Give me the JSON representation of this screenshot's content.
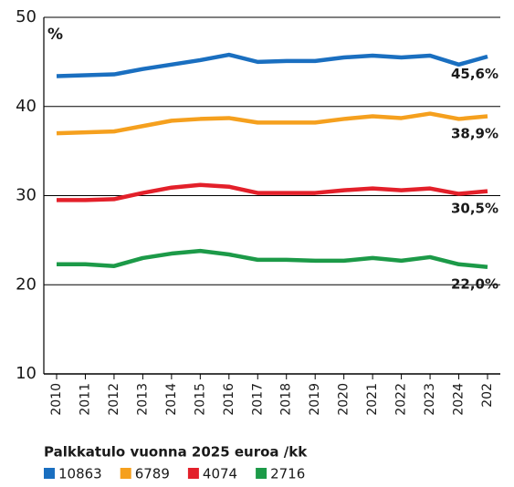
{
  "chart_data": {
    "type": "line",
    "y_label": "%",
    "legend_title": "Palkkatulo vuonna 2025 euroa /kk",
    "categories": [
      "2010",
      "2011",
      "2012",
      "2013",
      "2014",
      "2015",
      "2016",
      "2017",
      "2018",
      "2019",
      "2020",
      "2021",
      "2022",
      "2023",
      "2024",
      "202"
    ],
    "series": [
      {
        "name": "10863",
        "color": "#1a6fc0",
        "values": [
          43.4,
          43.5,
          43.6,
          44.2,
          44.7,
          45.2,
          45.8,
          45.0,
          45.1,
          45.1,
          45.5,
          45.7,
          45.5,
          45.7,
          44.7,
          45.6
        ],
        "value_labels": [
          null,
          null,
          null,
          null,
          null,
          null,
          null,
          null,
          null,
          null,
          null,
          null,
          null,
          null,
          null,
          "45,6%"
        ]
      },
      {
        "name": "6789",
        "color": "#f5a01e",
        "values": [
          37.0,
          37.1,
          37.2,
          37.8,
          38.4,
          38.6,
          38.7,
          38.2,
          38.2,
          38.2,
          38.6,
          38.9,
          38.7,
          39.2,
          38.6,
          38.9
        ],
        "value_labels": [
          null,
          null,
          null,
          null,
          null,
          null,
          null,
          null,
          null,
          null,
          null,
          null,
          null,
          null,
          null,
          "38,9%"
        ]
      },
      {
        "name": "4074",
        "color": "#e3202a",
        "values": [
          29.5,
          29.5,
          29.6,
          30.3,
          30.9,
          31.2,
          31.0,
          30.3,
          30.3,
          30.3,
          30.6,
          30.8,
          30.6,
          30.8,
          30.2,
          30.5
        ],
        "value_labels": [
          null,
          null,
          null,
          null,
          null,
          null,
          null,
          null,
          null,
          null,
          null,
          null,
          null,
          null,
          null,
          "30,5%"
        ]
      },
      {
        "name": "2716",
        "color": "#1c9a48",
        "values": [
          22.3,
          22.3,
          22.1,
          23.0,
          23.5,
          23.8,
          23.4,
          22.8,
          22.8,
          22.7,
          22.7,
          23.0,
          22.7,
          23.1,
          22.3,
          22.0
        ],
        "value_labels": [
          null,
          null,
          null,
          null,
          null,
          null,
          null,
          null,
          null,
          null,
          null,
          null,
          null,
          null,
          null,
          "22,0%"
        ]
      }
    ],
    "ylim": [
      10,
      50
    ],
    "yticks": [
      10,
      20,
      30,
      40,
      50
    ],
    "grid": true,
    "legend": "bottom"
  }
}
